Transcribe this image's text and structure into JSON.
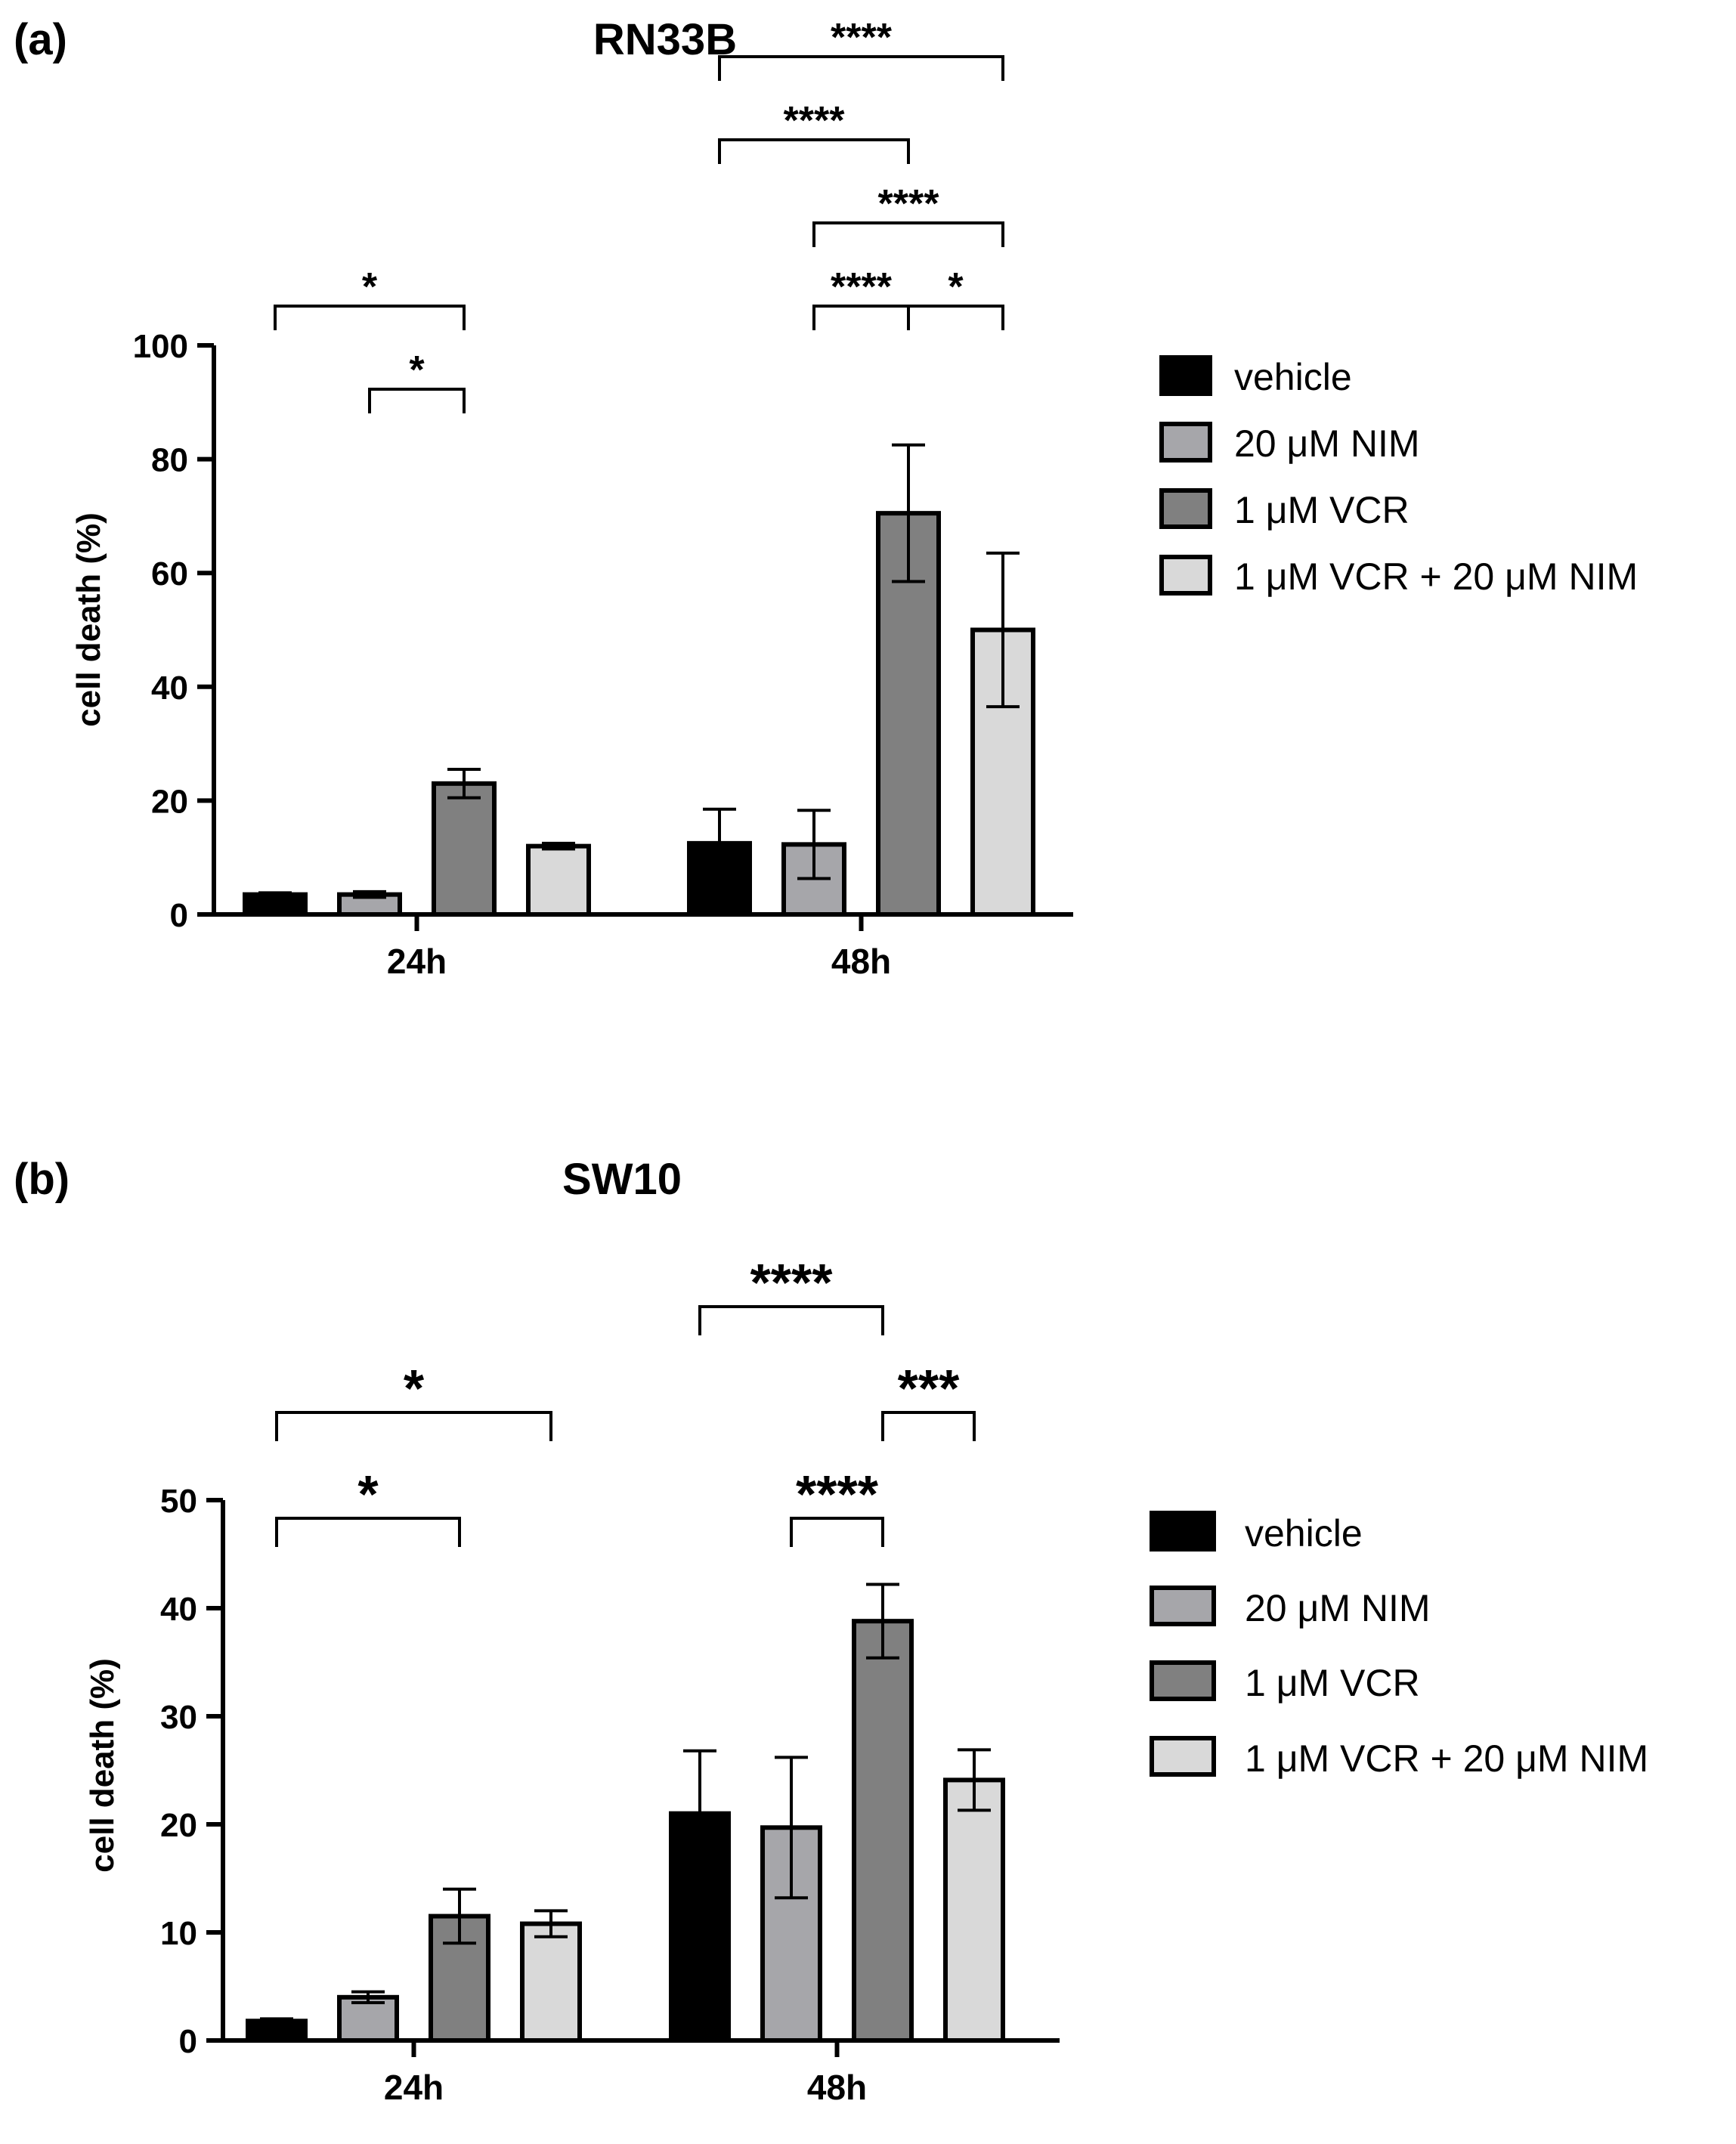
{
  "colors": {
    "vehicle": "#000000",
    "nim": "#a6a6aa",
    "vcr": "#808080",
    "combo": "#d9d9d9",
    "stroke": "#000000"
  },
  "chart_data": [
    {
      "panel_label": "(a)",
      "type": "bar",
      "title": "RN33B",
      "ylabel": "cell death (%)",
      "xlabel": "",
      "ylim": [
        0,
        100
      ],
      "yticks": [
        0,
        20,
        40,
        60,
        80,
        100
      ],
      "ytick_labels": [
        "0",
        "20",
        "40",
        "60",
        "80",
        "100"
      ],
      "categories": [
        "24h",
        "48h"
      ],
      "legend_position": "right",
      "series": [
        {
          "name": "vehicle",
          "color_key": "vehicle",
          "values": [
            3.5,
            12.5
          ],
          "errors": [
            0.3,
            6
          ]
        },
        {
          "name": "20 μM NIM",
          "color_key": "nim",
          "values": [
            3.5,
            12.3
          ],
          "errors": [
            0.5,
            6
          ]
        },
        {
          "name": "1 μM VCR",
          "color_key": "vcr",
          "values": [
            23,
            70.5
          ],
          "errors": [
            2.5,
            12
          ]
        },
        {
          "name": "1 μM VCR + 20 μM NIM",
          "color_key": "combo",
          "values": [
            12,
            50
          ],
          "errors": [
            0.5,
            13.5
          ]
        }
      ],
      "significance": [
        {
          "group": 0,
          "from": 0,
          "to": 2,
          "level": 1,
          "label": "*"
        },
        {
          "group": 0,
          "from": 1,
          "to": 2,
          "level": 0,
          "label": "*"
        },
        {
          "group": 1,
          "from": 0,
          "to": 3,
          "level": 4,
          "label": "****"
        },
        {
          "group": 1,
          "from": 0,
          "to": 2,
          "level": 3,
          "label": "****"
        },
        {
          "group": 1,
          "from": 1,
          "to": 3,
          "level": 2,
          "label": "****"
        },
        {
          "group": 1,
          "from": 1,
          "to": 2,
          "level": 1,
          "label": "****"
        },
        {
          "group": 1,
          "from": 2,
          "to": 3,
          "level": 1,
          "label": "*"
        }
      ]
    },
    {
      "panel_label": "(b)",
      "type": "bar",
      "title": "SW10",
      "ylabel": "cell death (%)",
      "xlabel": "",
      "ylim": [
        0,
        50
      ],
      "yticks": [
        0,
        10,
        20,
        30,
        40,
        50
      ],
      "ytick_labels": [
        "0",
        "10",
        "20",
        "30",
        "40",
        "50"
      ],
      "categories": [
        "24h",
        "48h"
      ],
      "legend_position": "right",
      "series": [
        {
          "name": "vehicle",
          "color_key": "vehicle",
          "values": [
            1.8,
            21
          ],
          "errors": [
            0.2,
            5.8
          ]
        },
        {
          "name": "20 μM NIM",
          "color_key": "nim",
          "values": [
            4,
            19.7
          ],
          "errors": [
            0.5,
            6.5
          ]
        },
        {
          "name": "1 μM VCR",
          "color_key": "vcr",
          "values": [
            11.5,
            38.8
          ],
          "errors": [
            2.5,
            3.4
          ]
        },
        {
          "name": "1 μM VCR + 20 μM NIM",
          "color_key": "combo",
          "values": [
            10.8,
            24.1
          ],
          "errors": [
            1.2,
            2.8
          ]
        }
      ],
      "significance": [
        {
          "group": 0,
          "from": 0,
          "to": 3,
          "level": 1,
          "label": "*"
        },
        {
          "group": 0,
          "from": 0,
          "to": 2,
          "level": 0,
          "label": "*"
        },
        {
          "group": 1,
          "from": 0,
          "to": 2,
          "level": 2,
          "label": "****"
        },
        {
          "group": 1,
          "from": 2,
          "to": 3,
          "level": 1,
          "label": "***"
        },
        {
          "group": 1,
          "from": 1,
          "to": 2,
          "level": 0,
          "label": "****"
        }
      ]
    }
  ]
}
